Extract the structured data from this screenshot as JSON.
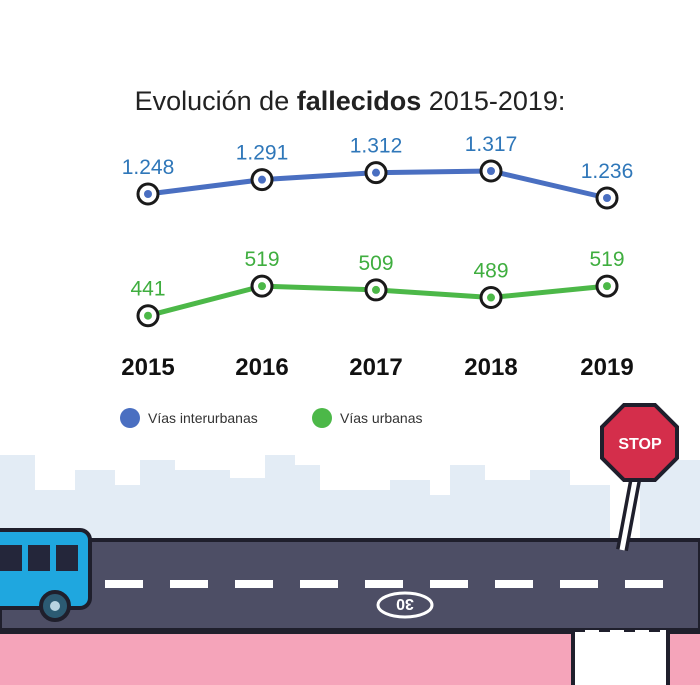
{
  "title": {
    "prefix": "Evolución de ",
    "bold": "fallecidos",
    "suffix": " 2015-2019:"
  },
  "colors": {
    "interurbanas": "#4a6fc1",
    "urbanas": "#4cb848",
    "value_interurbanas": "#2f77b9",
    "value_urbanas": "#3fae3f"
  },
  "chart_data": {
    "type": "line",
    "categories": [
      "2015",
      "2016",
      "2017",
      "2018",
      "2019"
    ],
    "series": [
      {
        "name": "Vías interurbanas",
        "values": [
          1248,
          1291,
          1312,
          1317,
          1236
        ],
        "labels": [
          "1.248",
          "1.291",
          "1.312",
          "1.317",
          "1.236"
        ]
      },
      {
        "name": "Vías urbanas",
        "values": [
          441,
          519,
          509,
          489,
          519
        ],
        "labels": [
          "441",
          "519",
          "509",
          "489",
          "519"
        ]
      }
    ],
    "legend_position": "bottom-left",
    "grid": false
  },
  "legend": {
    "interurbanas": "Vías interurbanas",
    "urbanas": "Vías urbanas"
  },
  "scene": {
    "stop_sign": "STOP",
    "speed_marking": "30"
  }
}
